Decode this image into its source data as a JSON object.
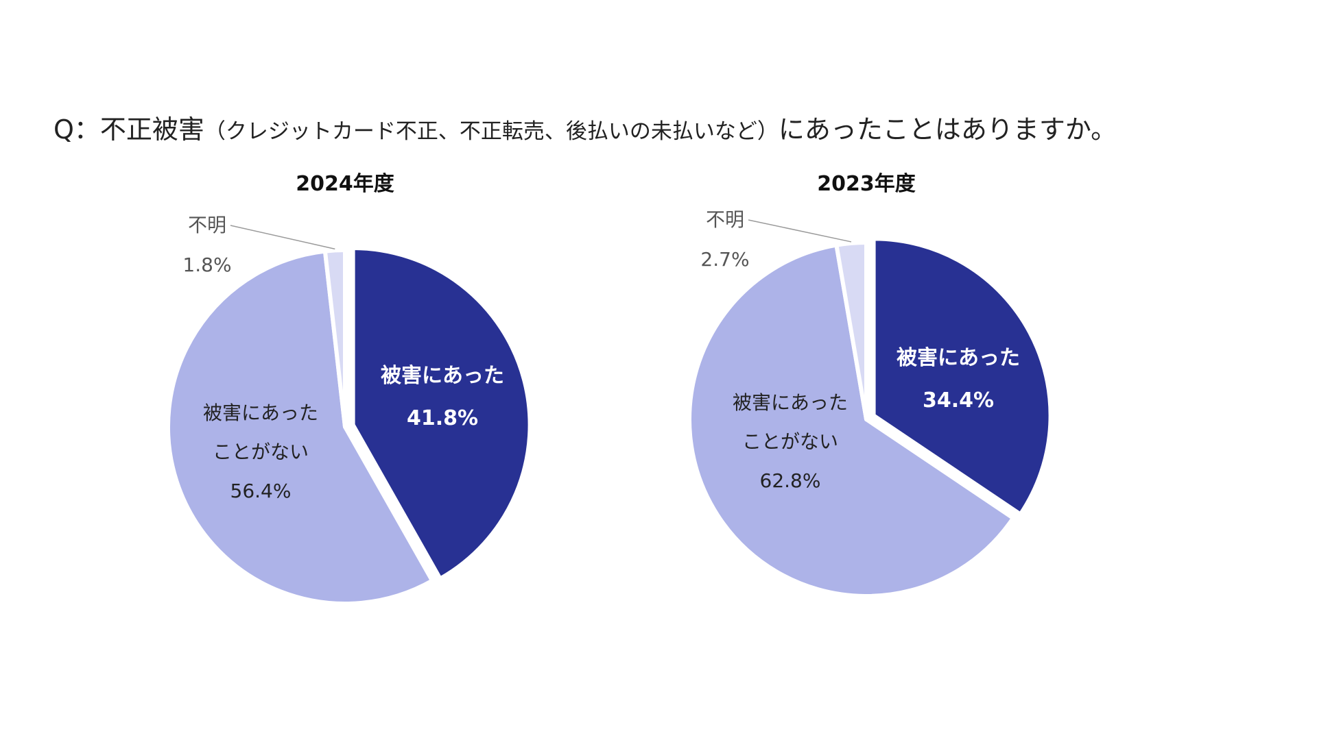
{
  "question": {
    "prefix": "Q：不正被害",
    "note": "（クレジットカード不正、不正転売、後払いの未払いなど）",
    "suffix": "にあったことはありますか。"
  },
  "chart_data": [
    {
      "type": "pie",
      "title": "2024年度",
      "slices": [
        {
          "name": "被害にあった",
          "value": 41.8,
          "label_lines": [
            "被害にあった",
            "41.8%"
          ],
          "color": "#283193",
          "exploded": true
        },
        {
          "name": "被害にあったことがない",
          "value": 56.4,
          "label_lines": [
            "被害にあった",
            "ことがない",
            "56.4%"
          ],
          "color": "#adb3e8"
        },
        {
          "name": "不明",
          "value": 1.8,
          "label_lines": [
            "不明",
            "1.8%"
          ],
          "color": "#d8daf4"
        }
      ]
    },
    {
      "type": "pie",
      "title": "2023年度",
      "slices": [
        {
          "name": "被害にあった",
          "value": 34.4,
          "label_lines": [
            "被害にあった",
            "34.4%"
          ],
          "color": "#283193",
          "exploded": true
        },
        {
          "name": "被害にあったことがない",
          "value": 62.8,
          "label_lines": [
            "被害にあった",
            "ことがない",
            "62.8%"
          ],
          "color": "#adb3e8"
        },
        {
          "name": "不明",
          "value": 2.7,
          "label_lines": [
            "不明",
            "2.7%"
          ],
          "color": "#d8daf4"
        }
      ]
    }
  ]
}
